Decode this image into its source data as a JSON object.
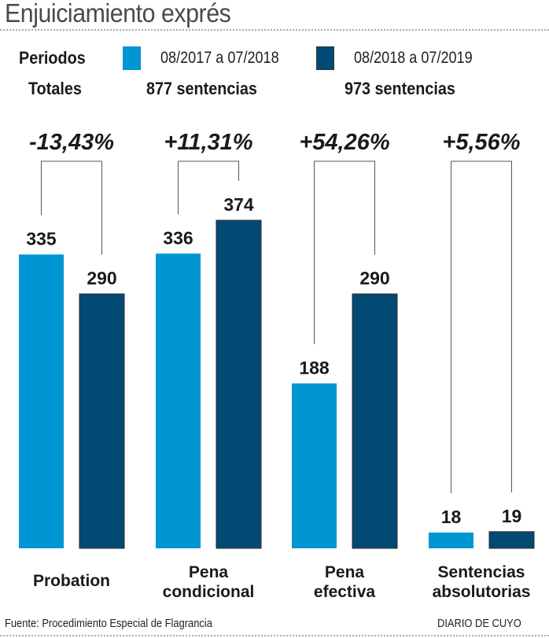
{
  "chart_data": {
    "type": "bar",
    "title": "Enjuiciamiento exprés",
    "xlabel": "",
    "ylabel": "",
    "grid": false,
    "legend_label": "Periodos",
    "legend_position": "top",
    "totals_label": "Totales",
    "categories": [
      [
        "Probation"
      ],
      [
        "Pena",
        "condicional"
      ],
      [
        "Pena",
        "efectiva"
      ],
      [
        "Sentencias",
        "absolutorias"
      ]
    ],
    "series": [
      {
        "name": "08/2017 a 07/2018",
        "total": "877 sentencias",
        "color": "#0096d3",
        "values": [
          335,
          336,
          188,
          18
        ]
      },
      {
        "name": "08/2018 a 07/2019",
        "total": "973 sentencias",
        "color": "#024a74",
        "values": [
          290,
          374,
          290,
          19
        ]
      }
    ],
    "changes": [
      "-13,43%",
      "+11,31%",
      "+54,26%",
      "+5,56%"
    ],
    "ylim": [
      0,
      400
    ],
    "source": "Fuente: Procedimiento Especial de Flagrancia",
    "credit": "DIARIO DE CUYO"
  }
}
